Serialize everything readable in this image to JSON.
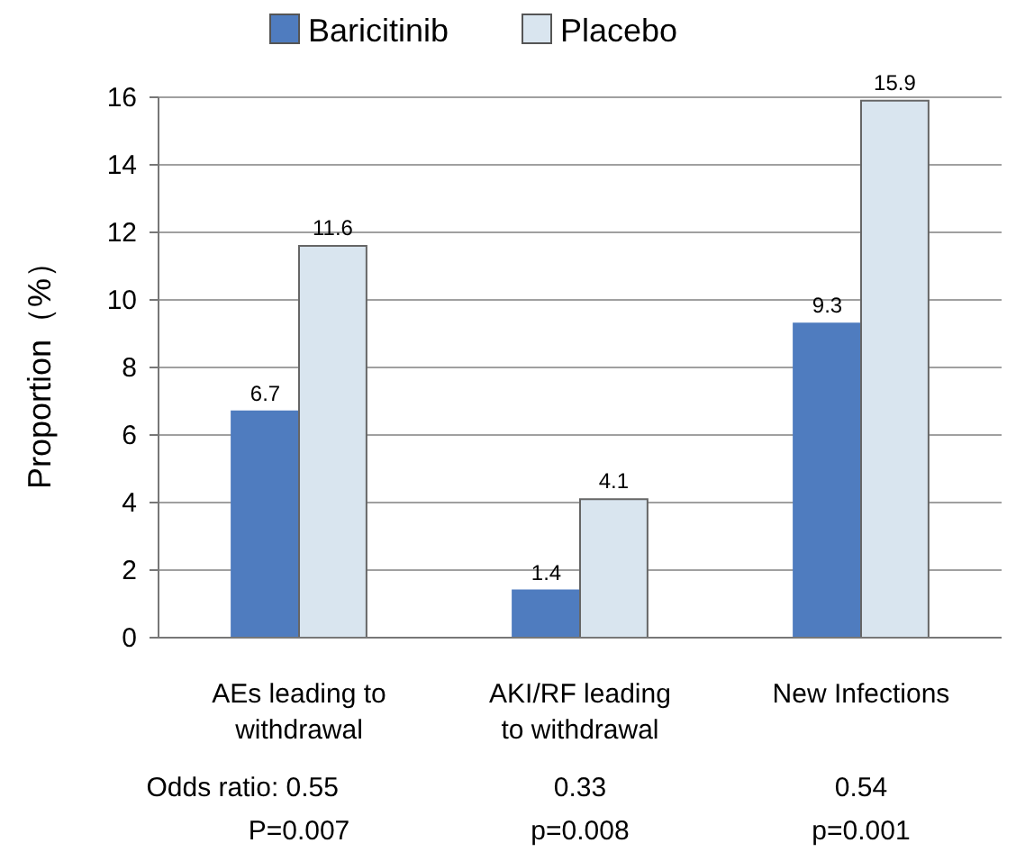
{
  "chart_data": {
    "type": "bar",
    "ylabel": "Proportion（%）",
    "categories": [
      "AEs leading to\nwithdrawal",
      "AKI/RF leading\nto withdrawal",
      "New Infections"
    ],
    "series": [
      {
        "name": "Baricitinib",
        "color": "#4f7cbf",
        "values": [
          6.7,
          1.4,
          9.3
        ]
      },
      {
        "name": "Placebo",
        "color": "#d9e5ef",
        "values": [
          11.6,
          4.1,
          15.9
        ]
      }
    ],
    "data_labels": true,
    "ylim": [
      0,
      16
    ],
    "yticks": [
      0,
      2,
      4,
      6,
      8,
      10,
      12,
      14,
      16
    ],
    "grid": "y",
    "legend": "top",
    "annotations": [
      "Odds ratio:  0.55",
      "0.33",
      "0.54",
      "P=0.007",
      "p=0.008",
      "p=0.001"
    ]
  }
}
